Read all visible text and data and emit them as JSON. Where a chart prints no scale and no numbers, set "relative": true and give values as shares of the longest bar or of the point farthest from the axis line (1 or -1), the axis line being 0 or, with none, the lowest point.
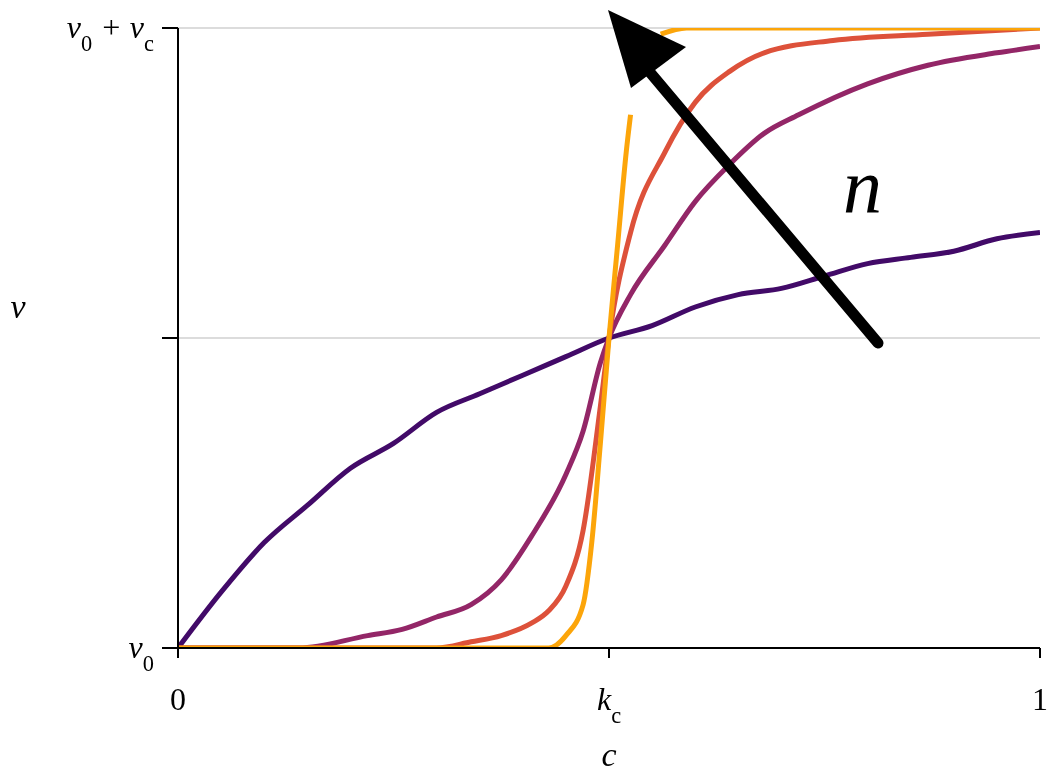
{
  "chart_data": {
    "type": "line",
    "xlabel": "c",
    "ylabel": "v",
    "xlim": [
      0,
      1
    ],
    "relative": true,
    "xticks": [
      0,
      {
        "value": 0.5,
        "label": "k$_{c}$"
      },
      1
    ],
    "ref_lines": [
      {
        "axis": "y",
        "value": 0.5,
        "color": "#dcdcdc"
      },
      {
        "axis": "y",
        "value": 1,
        "color": "#dcdcdc"
      }
    ],
    "marker": "none",
    "line_style": "solid",
    "annotations": [
      "n",
      "v$_{0}$",
      "v$_{0}$ + v$_{c}$"
    ],
    "series": [
      {
        "color": "#420a68",
        "x": [
          0,
          0.05,
          0.1,
          0.15,
          0.2,
          0.25,
          0.3,
          0.35,
          0.4,
          0.45,
          0.5,
          0.55,
          0.6,
          0.65,
          0.7,
          0.75,
          0.8,
          0.85,
          0.9,
          0.95,
          1
        ],
        "values": [
          0,
          0.09,
          0.17,
          0.23,
          0.29,
          0.33,
          0.38,
          0.41,
          0.44,
          0.47,
          0.5,
          0.52,
          0.55,
          0.57,
          0.58,
          0.6,
          0.62,
          0.63,
          0.64,
          0.66,
          0.67
        ]
      },
      {
        "color": "#932667",
        "x": [
          0,
          0.14,
          0.22,
          0.26,
          0.3,
          0.34,
          0.375,
          0.41,
          0.45,
          0.47,
          0.49,
          0.5,
          0.525,
          0.565,
          0.6,
          0.64,
          0.68,
          0.72,
          0.8,
          0.87,
          0.95,
          1
        ],
        "values": [
          0,
          0,
          0.02,
          0.03,
          0.05,
          0.07,
          0.11,
          0.18,
          0.28,
          0.35,
          0.46,
          0.5,
          0.57,
          0.65,
          0.72,
          0.78,
          0.83,
          0.86,
          0.91,
          0.94,
          0.96,
          0.97
        ]
      },
      {
        "color": "#dd513a",
        "x": [
          0,
          0.3,
          0.34,
          0.375,
          0.41,
          0.43,
          0.45,
          0.47,
          0.49,
          0.5,
          0.525,
          0.565,
          0.6,
          0.64,
          0.68,
          0.76,
          0.87,
          1
        ],
        "values": [
          0,
          0,
          0.01,
          0.02,
          0.04,
          0.06,
          0.1,
          0.19,
          0.39,
          0.5,
          0.67,
          0.8,
          0.88,
          0.93,
          0.96,
          0.98,
          0.99,
          1
        ]
      },
      {
        "color": "#fca50a",
        "x": [
          0,
          0.43,
          0.45,
          0.47,
          0.48,
          0.49,
          0.5,
          0.51,
          0.52,
          0.525,
          0.53,
          0.54,
          0.56,
          0.59,
          1
        ],
        "values": [
          0,
          0,
          0.02,
          0.07,
          0.17,
          0.33,
          0.5,
          0.65,
          0.8,
          0.86,
          null,
          null,
          0.99,
          1,
          1
        ]
      }
    ]
  }
}
